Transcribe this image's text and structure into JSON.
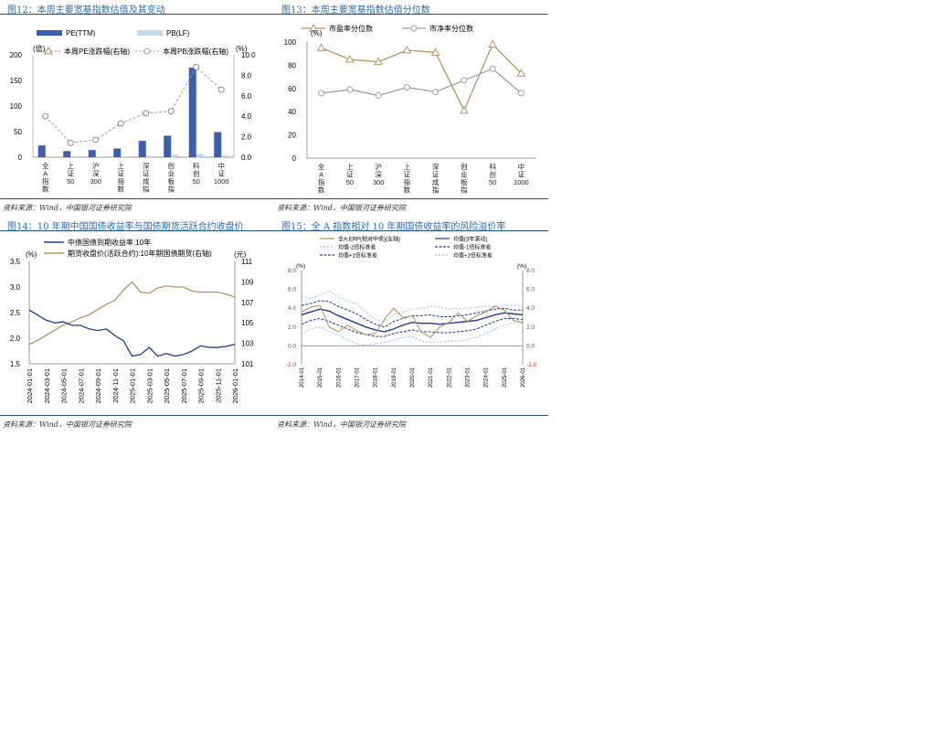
{
  "fig12": {
    "title": "图12：本周主要宽基指数估值及其变动",
    "source": "资料来源：Wind，中国银河证券研究院",
    "chart_data": {
      "type": "bar",
      "categories": [
        "全A指数",
        "上证50",
        "沪深300",
        "上证指数",
        "深证成指",
        "创业板指",
        "科创50",
        "中证1000"
      ],
      "category_labels": [
        "全\nA\n指\n数",
        "上\n证\n50",
        "沪\n深\n300",
        "上\n证\n指\n数",
        "深\n证\n成\n指",
        "创\n业\n板\n指",
        "科\n创\n50",
        "中\n证\n1000"
      ],
      "series": [
        {
          "name": "PE(TTM)",
          "axis": "left",
          "type": "bar",
          "color": "#3a5fb0",
          "values": [
            23,
            12,
            14,
            17,
            32,
            42,
            175,
            49
          ]
        },
        {
          "name": "PB(LF)",
          "axis": "left",
          "type": "bar",
          "color": "#c5d6ee",
          "values": [
            2,
            1.5,
            1.6,
            1.6,
            3,
            5,
            6.5,
            3.2
          ]
        },
        {
          "name": "本周PE涨跌幅(右轴)",
          "axis": "right",
          "type": "line",
          "color": "#b08d57",
          "values": [
            null,
            null,
            null,
            null,
            null,
            null,
            null,
            null
          ]
        },
        {
          "name": "本周PB涨跌幅(右轴)",
          "axis": "right",
          "type": "line",
          "color": "#a0a0a0",
          "values": [
            4.0,
            1.4,
            1.7,
            3.3,
            4.3,
            4.5,
            8.8,
            6.6
          ]
        }
      ],
      "left_unit": "(倍)",
      "right_unit": "(%)",
      "ylim_left": [
        0,
        200
      ],
      "yticks_left": [
        "0",
        "50",
        "100",
        "150",
        "200"
      ],
      "ylim_right": [
        0,
        10
      ],
      "yticks_right": [
        "0.0",
        "2.0",
        "4.0",
        "6.0",
        "8.0",
        "10.0"
      ]
    }
  },
  "fig13": {
    "title": "图13：本周主要宽基指数估值分位数",
    "source": "资料来源：Wind，中国银河证券研究院",
    "chart_data": {
      "type": "line",
      "categories": [
        "全A指数",
        "上证50",
        "沪深300",
        "上证指数",
        "深证成指",
        "创业板指",
        "科创50",
        "中证1000"
      ],
      "category_labels": [
        "全\nA\n指\n数",
        "上\n证\n50",
        "沪\n深\n300",
        "上\n证\n指\n数",
        "深\n证\n成\n指",
        "创\n业\n板\n指",
        "科\n创\n50",
        "中\n证\n1000"
      ],
      "series": [
        {
          "name": "市盈率分位数",
          "color": "#b8945e",
          "marker": "triangle",
          "values": [
            95,
            85,
            83,
            93,
            91,
            41,
            98,
            73
          ]
        },
        {
          "name": "市净率分位数",
          "color": "#a0a0a0",
          "marker": "circle",
          "values": [
            56,
            59,
            54,
            61,
            57,
            67,
            77,
            56
          ]
        }
      ],
      "unit": "(%)",
      "ylim": [
        0,
        100
      ],
      "yticks": [
        "0",
        "20",
        "40",
        "60",
        "80",
        "100"
      ]
    }
  },
  "fig14": {
    "title": "图14：10 年期中国国债收益率与国债期货活跃合约收盘价",
    "source": "资料来源：Wind，中国银河证券研究院",
    "chart_data": {
      "type": "line",
      "x": [
        "2024-01",
        "2024-02",
        "2024-03",
        "2024-04",
        "2024-05",
        "2024-06",
        "2024-07",
        "2024-08",
        "2024-09",
        "2024-10",
        "2024-11",
        "2024-12",
        "2025-01",
        "2025-02",
        "2025-03",
        "2025-04",
        "2025-05",
        "2025-06",
        "2025-07",
        "2025-08",
        "2025-09",
        "2025-10",
        "2025-11",
        "2025-12",
        "2026-01"
      ],
      "xticks": [
        "2024-01-01",
        "2024-03-01",
        "2024-05-01",
        "2024-07-01",
        "2024-09-01",
        "2024-11-01",
        "2025-01-01",
        "2025-03-01",
        "2025-05-01",
        "2025-07-01",
        "2025-09-01",
        "2025-11-01",
        "2026-01-01"
      ],
      "series": [
        {
          "name": "中债国债到期收益率:10年",
          "axis": "left",
          "color": "#1f3a93",
          "values": [
            2.55,
            2.45,
            2.35,
            2.3,
            2.32,
            2.25,
            2.25,
            2.18,
            2.15,
            2.18,
            2.05,
            1.95,
            1.65,
            1.68,
            1.82,
            1.65,
            1.7,
            1.65,
            1.68,
            1.75,
            1.85,
            1.82,
            1.82,
            1.84,
            1.88
          ]
        },
        {
          "name": "期货收盘价(活跃合约):10年期国债期货(右轴)",
          "axis": "right",
          "color": "#b8945e",
          "values": [
            102.9,
            103.3,
            103.8,
            104.3,
            104.8,
            105.1,
            105.5,
            105.8,
            106.3,
            106.8,
            107.2,
            108.2,
            109.0,
            108.0,
            107.9,
            108.4,
            108.6,
            108.5,
            108.5,
            108.1,
            108.0,
            108.0,
            108.0,
            107.8,
            107.5
          ]
        }
      ],
      "left_unit": "(%)",
      "right_unit": "(元)",
      "ylim_left": [
        1.5,
        3.5
      ],
      "yticks_left": [
        "1.5",
        "2.0",
        "2.5",
        "3.0",
        "3.5"
      ],
      "ylim_right": [
        101,
        111
      ],
      "yticks_right": [
        "101",
        "103",
        "105",
        "107",
        "109",
        "111"
      ]
    }
  },
  "fig15": {
    "title": "图15：全 A 指数相对 10 年期国债收益率的风险溢价率",
    "source": "资料来源：Wind，中国银河证券研究院",
    "chart_data": {
      "type": "line",
      "x": [
        "2014-01",
        "2014-07",
        "2015-01",
        "2015-07",
        "2016-01",
        "2016-07",
        "2017-01",
        "2017-07",
        "2018-01",
        "2018-07",
        "2019-01",
        "2019-07",
        "2020-01",
        "2020-07",
        "2021-01",
        "2021-07",
        "2022-01",
        "2022-07",
        "2023-01",
        "2023-07",
        "2024-01",
        "2024-07",
        "2025-01",
        "2025-07",
        "2026-01"
      ],
      "xticks": [
        "2014-01",
        "2015-01",
        "2016-01",
        "2017-01",
        "2018-01",
        "2019-01",
        "2020-01",
        "2021-01",
        "2022-01",
        "2023-01",
        "2024-01",
        "2025-01",
        "2026-01"
      ],
      "series": [
        {
          "name": "全A:ERP(相对中债)(左轴)",
          "color": "#b8945e",
          "values": [
            3.6,
            4.1,
            4.3,
            2.0,
            1.5,
            2.2,
            1.6,
            1.2,
            1.3,
            2.8,
            4.0,
            3.0,
            3.2,
            1.5,
            0.9,
            2.0,
            2.5,
            3.5,
            2.6,
            3.2,
            3.6,
            4.2,
            3.8,
            2.7,
            2.5
          ]
        },
        {
          "name": "均值(3年滚动)",
          "color": "#1f3a93",
          "values": [
            3.3,
            3.6,
            3.9,
            3.7,
            3.2,
            2.8,
            2.4,
            2.0,
            1.7,
            1.5,
            1.8,
            2.2,
            2.5,
            2.4,
            2.4,
            2.3,
            2.4,
            2.5,
            2.6,
            2.7,
            3.0,
            3.3,
            3.5,
            3.4,
            3.3
          ]
        },
        {
          "name": "均值-2倍标准差",
          "color": "#9db8e0",
          "values": [
            1.3,
            1.8,
            2.0,
            1.5,
            1.2,
            0.6,
            0.2,
            0.1,
            0.2,
            0.4,
            0.6,
            0.9,
            1.0,
            0.5,
            0.4,
            0.4,
            0.5,
            0.5,
            0.7,
            0.9,
            1.3,
            1.8,
            2.2,
            2.5,
            2.4
          ]
        },
        {
          "name": "均值-1倍标准差",
          "color": "#1f3a93",
          "values": [
            2.3,
            2.7,
            2.9,
            2.6,
            2.2,
            1.8,
            1.4,
            1.2,
            1.0,
            1.0,
            1.3,
            1.5,
            1.7,
            1.5,
            1.5,
            1.4,
            1.4,
            1.5,
            1.6,
            1.8,
            2.2,
            2.6,
            2.9,
            2.9,
            2.8
          ]
        },
        {
          "name": "均值+1倍标准差",
          "color": "#1f3a93",
          "values": [
            4.3,
            4.5,
            4.8,
            4.7,
            4.2,
            3.8,
            3.4,
            2.8,
            2.3,
            2.0,
            2.6,
            2.9,
            3.2,
            3.2,
            3.3,
            3.1,
            3.1,
            3.2,
            3.3,
            3.5,
            3.7,
            3.9,
            4.0,
            3.8,
            3.8
          ]
        },
        {
          "name": "均值+2倍标准差",
          "color": "#9db8e0",
          "values": [
            5.3,
            5.0,
            5.4,
            5.8,
            5.2,
            4.8,
            4.4,
            3.6,
            2.8,
            2.6,
            3.3,
            3.6,
            3.9,
            4.0,
            4.2,
            4.1,
            3.9,
            4.0,
            4.0,
            4.1,
            4.2,
            4.2,
            4.3,
            4.3,
            4.3
          ]
        }
      ],
      "left_unit": "(%)",
      "right_unit": "(%)",
      "ylim": [
        -2,
        8
      ],
      "yticks": [
        "-2.0",
        "0.0",
        "2.0",
        "4.0",
        "6.0",
        "8.0"
      ]
    }
  }
}
